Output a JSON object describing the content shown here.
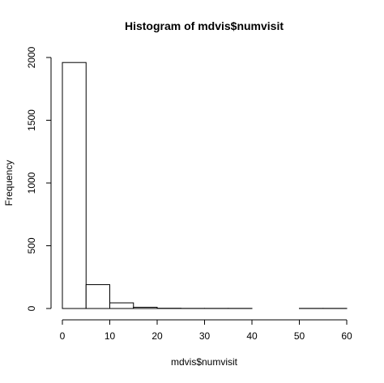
{
  "chart_data": {
    "type": "bar",
    "subtype": "histogram",
    "title": "Histogram of mdvis$numvisit",
    "xlabel": "mdvis$numvisit",
    "ylabel": "Frequency",
    "bins": [
      {
        "start": 0,
        "end": 5,
        "count": 1960
      },
      {
        "start": 5,
        "end": 10,
        "count": 190
      },
      {
        "start": 10,
        "end": 15,
        "count": 45
      },
      {
        "start": 15,
        "end": 20,
        "count": 10
      },
      {
        "start": 20,
        "end": 25,
        "count": 2
      },
      {
        "start": 25,
        "end": 30,
        "count": 1
      },
      {
        "start": 30,
        "end": 35,
        "count": 1
      },
      {
        "start": 35,
        "end": 40,
        "count": 1
      },
      {
        "start": 40,
        "end": 45,
        "count": 0
      },
      {
        "start": 45,
        "end": 50,
        "count": 0
      },
      {
        "start": 50,
        "end": 55,
        "count": 1
      },
      {
        "start": 55,
        "end": 60,
        "count": 1
      }
    ],
    "xlim": [
      0,
      60
    ],
    "ylim": [
      0,
      2000
    ],
    "xticks": [
      "0",
      "10",
      "20",
      "30",
      "40",
      "50",
      "60"
    ],
    "yticks": [
      "0",
      "500",
      "1000",
      "1500",
      "2000"
    ],
    "grid": false,
    "bar_fill": "#ffffff",
    "bar_stroke": "#000000"
  }
}
